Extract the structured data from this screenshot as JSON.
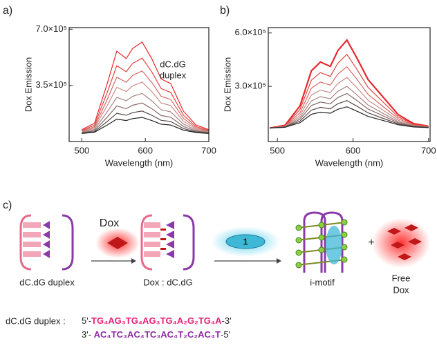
{
  "panel_labels": [
    "a)",
    "b)",
    "c)"
  ],
  "chart_data": [
    {
      "type": "line",
      "x_label": "Wavelength (nm)",
      "y_label": "Dox Emission",
      "xlim": [
        480,
        700
      ],
      "xticks": [
        500,
        600,
        700
      ],
      "ylim": [
        0,
        710000
      ],
      "yticks": [
        {
          "value": 350000,
          "label": "3.5×10⁵"
        },
        {
          "value": 700000,
          "label": "7.0×10⁵"
        }
      ],
      "annotations": [
        "dC.dG",
        "duplex"
      ],
      "x": [
        500,
        520,
        540,
        555,
        570,
        580,
        595,
        610,
        625,
        640,
        660,
        680,
        700
      ],
      "series": [
        {
          "color": "#e8262b",
          "values": [
            74000,
            114000,
            361000,
            563000,
            517000,
            580000,
            620000,
            517000,
            390000,
            361000,
            189000,
            103000,
            74000
          ]
        },
        {
          "color": "#e0453f",
          "values": [
            69000,
            102000,
            306000,
            473000,
            435000,
            487000,
            520000,
            435000,
            330000,
            306000,
            164000,
            93000,
            69000
          ]
        },
        {
          "color": "#d66a63",
          "values": [
            65000,
            92000,
            262000,
            401000,
            369000,
            412000,
            440000,
            369000,
            282000,
            262000,
            144000,
            85000,
            65000
          ]
        },
        {
          "color": "#c98b86",
          "values": [
            61000,
            84000,
            224000,
            338000,
            312000,
            347000,
            370000,
            312000,
            240000,
            224000,
            126000,
            78000,
            61000
          ]
        },
        {
          "color": "#a88480",
          "values": [
            58000,
            76000,
            185000,
            275000,
            254000,
            282000,
            300000,
            254000,
            198000,
            185000,
            109000,
            71000,
            58000
          ]
        },
        {
          "color": "#8a6b68",
          "values": [
            55000,
            68000,
            152000,
            221000,
            205000,
            226000,
            240000,
            205000,
            162000,
            152000,
            94000,
            65000,
            55000
          ]
        },
        {
          "color": "#5a4a48",
          "values": [
            52000,
            62000,
            125000,
            176000,
            164000,
            180000,
            190000,
            164000,
            132000,
            125000,
            81000,
            60000,
            52000
          ]
        },
        {
          "color": "#222222",
          "values": [
            50000,
            58000,
            103000,
            140000,
            131000,
            143000,
            150000,
            131000,
            108000,
            103000,
            71000,
            56000,
            50000
          ]
        }
      ]
    },
    {
      "type": "line",
      "x_label": "Wavelength (nm)",
      "y_label": "Dox Emission",
      "xlim": [
        488,
        702
      ],
      "xticks": [
        500,
        600,
        700
      ],
      "ylim": [
        -10000,
        630000
      ],
      "yticks": [
        {
          "value": 300000,
          "label": "3.0×10⁵"
        },
        {
          "value": 600000,
          "label": "6.0×10⁵"
        }
      ],
      "x": [
        490,
        510,
        530,
        545,
        557,
        570,
        580,
        592,
        605,
        620,
        640,
        660,
        680,
        700
      ],
      "series": [
        {
          "color": "#e8262b",
          "values": [
            66000,
            81000,
            190000,
            387000,
            437000,
            412000,
            501000,
            560000,
            461000,
            338000,
            239000,
            140000,
            91000,
            76000
          ]
        },
        {
          "color": "#e0453f",
          "values": [
            66000,
            78000,
            170000,
            335000,
            377000,
            356000,
            430000,
            480000,
            397000,
            294000,
            211000,
            128000,
            87000,
            74000
          ]
        },
        {
          "color": "#d66a63",
          "values": [
            66000,
            76000,
            152000,
            290000,
            324000,
            307000,
            369000,
            410000,
            341000,
            255000,
            186000,
            118000,
            83000,
            73000
          ]
        },
        {
          "color": "#c98b86",
          "values": [
            66000,
            75000,
            137000,
            251000,
            279000,
            265000,
            316000,
            350000,
            293000,
            222000,
            165000,
            109000,
            80000,
            72000
          ]
        },
        {
          "color": "#a88480",
          "values": [
            66000,
            73000,
            125000,
            218000,
            242000,
            230000,
            272000,
            300000,
            253000,
            195000,
            148000,
            101000,
            78000,
            71000
          ]
        },
        {
          "color": "#8a6b68",
          "values": [
            66000,
            72000,
            115000,
            192000,
            212000,
            202000,
            237000,
            260000,
            221000,
            173000,
            134000,
            95000,
            76000,
            70000
          ]
        },
        {
          "color": "#5a4a48",
          "values": [
            66000,
            71000,
            105000,
            166000,
            182000,
            174000,
            202000,
            220000,
            189000,
            151000,
            120000,
            89000,
            74000,
            69000
          ]
        },
        {
          "color": "#222222",
          "values": [
            66000,
            70000,
            96000,
            143000,
            155000,
            149000,
            171000,
            185000,
            161000,
            131000,
            108000,
            84000,
            72000,
            68000
          ]
        }
      ]
    }
  ],
  "scheme": {
    "dox": "Dox",
    "ligand": "1",
    "duplex": "dC.dG duplex",
    "complex": "Dox : dC.dG",
    "imotif": "i-motif",
    "plus": "+",
    "free": "Free",
    "free_dox": "Dox"
  },
  "sequence": {
    "label": "dC.dG duplex :",
    "top_start": "5'-",
    "top_seq": "TG₄AG₃TG₄AG₃TG₄A₂G₂TG₄A",
    "top_end": "-3'",
    "bottom_start": "3'- ",
    "bottom_seq": "AC₄TC₃AC₄TC₃AC₄T₂C₂AC₄T",
    "bottom_end": "-5'"
  }
}
